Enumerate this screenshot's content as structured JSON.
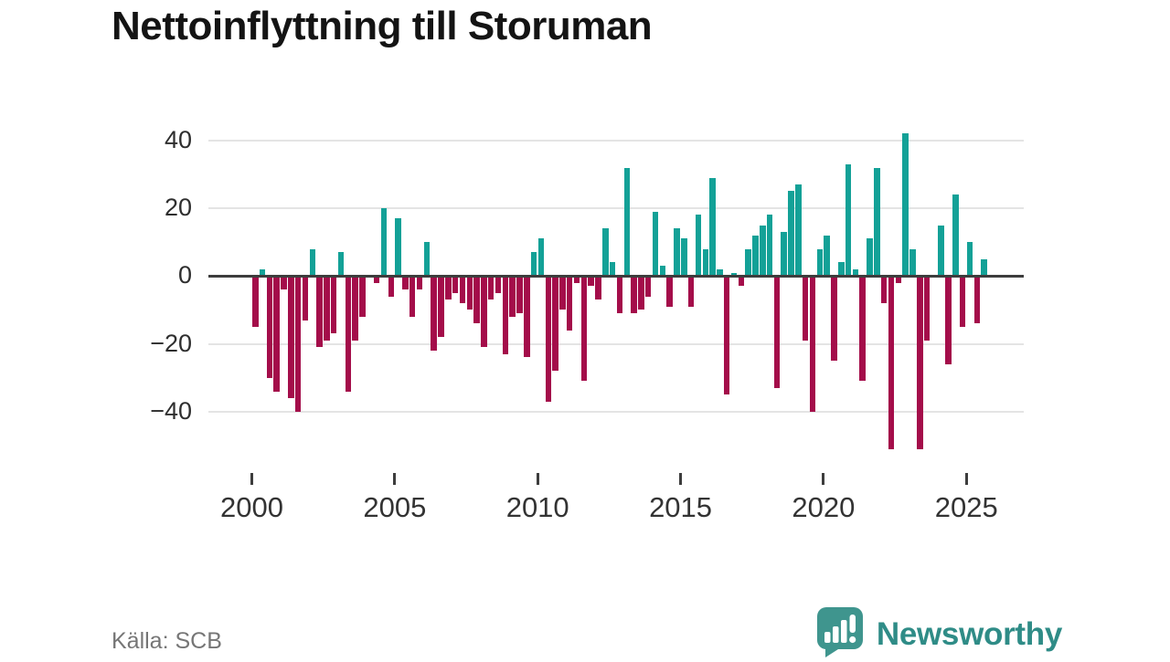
{
  "title": "Nettoinflyttning till Storuman",
  "source": "Källa: SCB",
  "branding": {
    "name": "Newsworthy",
    "logo_color": "#3f958e",
    "text_color": "#2f8c87"
  },
  "chart_data": {
    "type": "bar",
    "title": "Nettoinflyttning till Storuman",
    "xlabel": "",
    "ylabel": "",
    "frequency": "quarterly",
    "period_start": "2000Q1",
    "period_end": "2025Q3",
    "positive_color": "#13a197",
    "negative_color": "#a40d4a",
    "grid": true,
    "legend": "none",
    "ylim": [
      -55,
      45
    ],
    "y_ticks": [
      40,
      20,
      0,
      -20,
      -40
    ],
    "y_tick_labels": [
      "40",
      "20",
      "0",
      "−20",
      "−40"
    ],
    "x_tick_labels": [
      "2000",
      "2005",
      "2010",
      "2015",
      "2020",
      "2025"
    ],
    "x_tick_quarter_indices": [
      0,
      20,
      40,
      60,
      80,
      100
    ],
    "labels": [
      "2000Q1",
      "2000Q2",
      "2000Q3",
      "2000Q4",
      "2001Q1",
      "2001Q2",
      "2001Q3",
      "2001Q4",
      "2002Q1",
      "2002Q2",
      "2002Q3",
      "2002Q4",
      "2003Q1",
      "2003Q2",
      "2003Q3",
      "2003Q4",
      "2004Q1",
      "2004Q2",
      "2004Q3",
      "2004Q4",
      "2005Q1",
      "2005Q2",
      "2005Q3",
      "2005Q4",
      "2006Q1",
      "2006Q2",
      "2006Q3",
      "2006Q4",
      "2007Q1",
      "2007Q2",
      "2007Q3",
      "2007Q4",
      "2008Q1",
      "2008Q2",
      "2008Q3",
      "2008Q4",
      "2009Q1",
      "2009Q2",
      "2009Q3",
      "2009Q4",
      "2010Q1",
      "2010Q2",
      "2010Q3",
      "2010Q4",
      "2011Q1",
      "2011Q2",
      "2011Q3",
      "2011Q4",
      "2012Q1",
      "2012Q2",
      "2012Q3",
      "2012Q4",
      "2013Q1",
      "2013Q2",
      "2013Q3",
      "2013Q4",
      "2014Q1",
      "2014Q2",
      "2014Q3",
      "2014Q4",
      "2015Q1",
      "2015Q2",
      "2015Q3",
      "2015Q4",
      "2016Q1",
      "2016Q2",
      "2016Q3",
      "2016Q4",
      "2017Q1",
      "2017Q2",
      "2017Q3",
      "2017Q4",
      "2018Q1",
      "2018Q2",
      "2018Q3",
      "2018Q4",
      "2019Q1",
      "2019Q2",
      "2019Q3",
      "2019Q4",
      "2020Q1",
      "2020Q2",
      "2020Q3",
      "2020Q4",
      "2021Q1",
      "2021Q2",
      "2021Q3",
      "2021Q4",
      "2022Q1",
      "2022Q2",
      "2022Q3",
      "2022Q4",
      "2023Q1",
      "2023Q2",
      "2023Q3",
      "2023Q4",
      "2024Q1",
      "2024Q2",
      "2024Q3",
      "2024Q4",
      "2025Q1",
      "2025Q2",
      "2025Q3"
    ],
    "values": [
      -15,
      2,
      -30,
      -34,
      -4,
      -36,
      -40,
      -13,
      8,
      -21,
      -19,
      -17,
      7,
      -34,
      -19,
      -12,
      0,
      -2,
      20,
      -6,
      17,
      -4,
      -12,
      -4,
      10,
      -22,
      -18,
      -7,
      -5,
      -8,
      -10,
      -14,
      -21,
      -7,
      -5,
      -23,
      -12,
      -11,
      -24,
      7,
      11,
      -37,
      -28,
      -10,
      -16,
      -2,
      -31,
      -3,
      -7,
      14,
      4,
      -11,
      32,
      -11,
      -10,
      -6,
      19,
      3,
      -9,
      14,
      11,
      -9,
      18,
      8,
      29,
      2,
      -35,
      1,
      -3,
      8,
      12,
      15,
      18,
      -33,
      13,
      25,
      27,
      -19,
      -40,
      8,
      12,
      -25,
      4,
      33,
      2,
      -31,
      11,
      32,
      -8,
      -51,
      -2,
      42,
      8,
      -51,
      -19,
      0,
      15,
      -26,
      24,
      -15,
      10,
      -14,
      5
    ]
  }
}
